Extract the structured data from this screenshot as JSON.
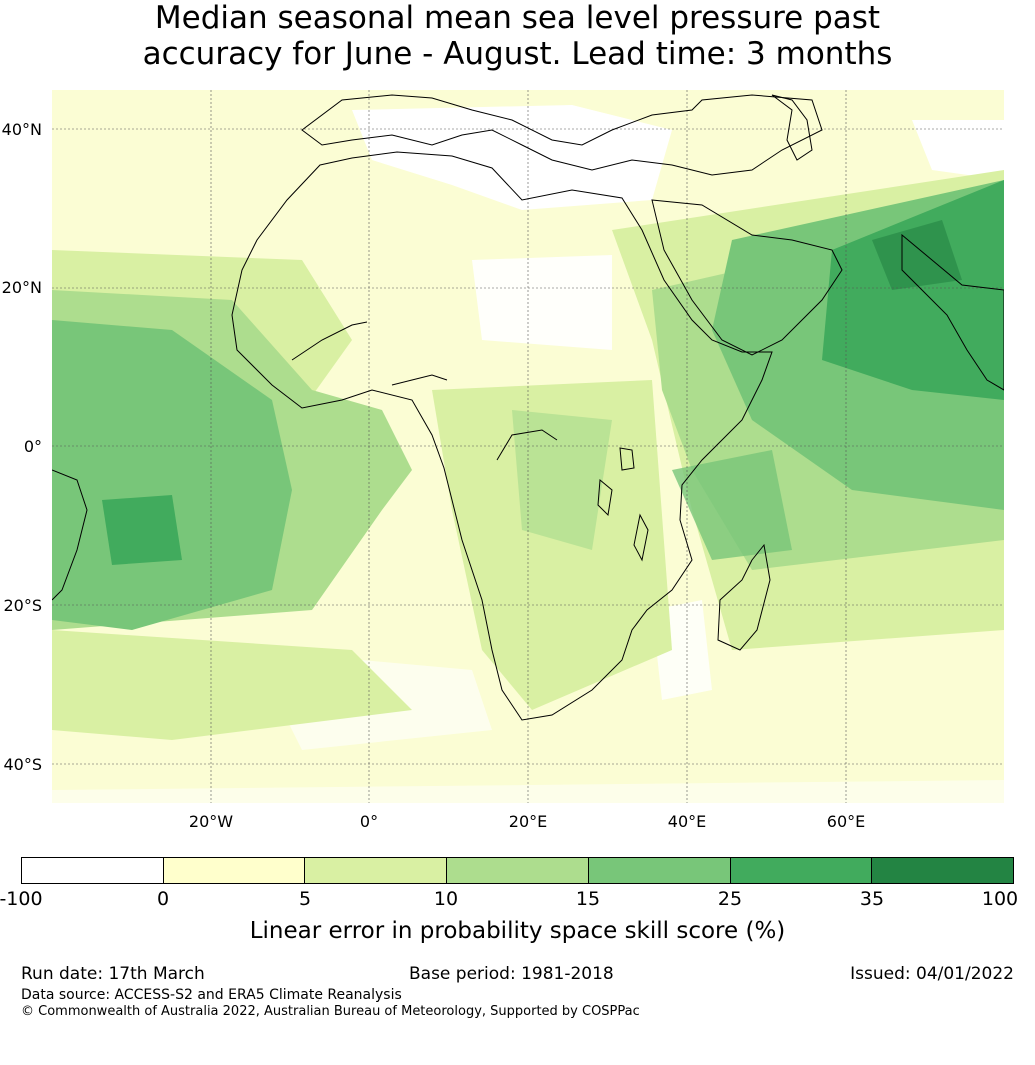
{
  "title": {
    "line1": "Median seasonal mean sea level pressure past",
    "line2": "accuracy for June - August. Lead time: 3 months"
  },
  "map": {
    "latitude_labels": [
      "40°N",
      "20°N",
      "0°",
      "20°S",
      "40°S"
    ],
    "longitude_labels": [
      "20°W",
      "0°",
      "20°E",
      "40°E",
      "60°E"
    ],
    "region": "Africa, Middle East, Atlantic and western Indian Ocean",
    "gridlines": true
  },
  "colorbar": {
    "ticks": [
      "-100",
      "0",
      "5",
      "10",
      "15",
      "25",
      "35",
      "100"
    ],
    "colors": [
      "#ffffff",
      "#ffffcc",
      "#d9f0a3",
      "#addd8e",
      "#78c679",
      "#41ab5d",
      "#238443"
    ],
    "label": "Linear error in probability space skill score (%)"
  },
  "footer": {
    "run_date": "Run date: 17th March",
    "base_period": "Base period: 1981-2018",
    "issued": "Issued: 04/01/2022",
    "data_source": "Data source: ACCESS-S2 and ERA5 Climate Reanalysis",
    "copyright": "© Commonwealth of Australia 2022, Australian Bureau of Meteorology, Supported by COSPPac"
  }
}
